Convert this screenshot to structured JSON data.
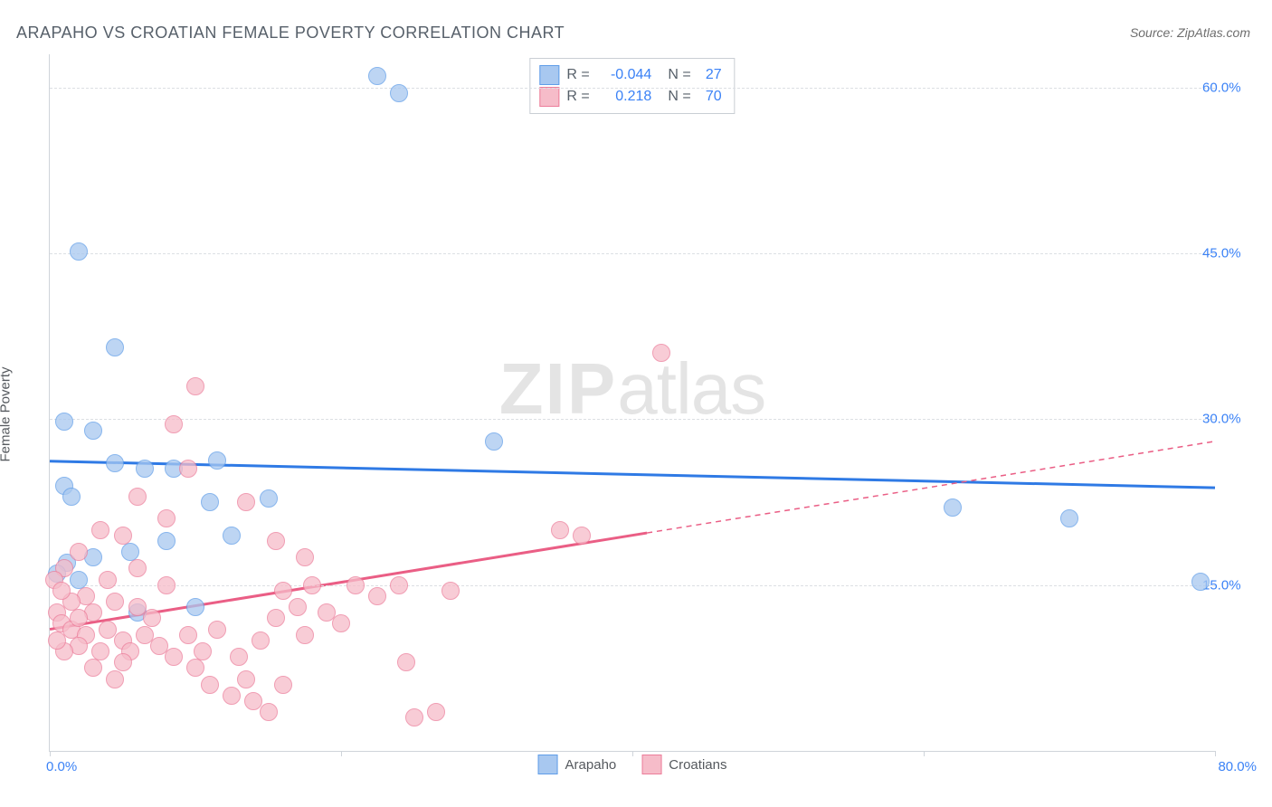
{
  "title": "ARAPAHO VS CROATIAN FEMALE POVERTY CORRELATION CHART",
  "source": "Source: ZipAtlas.com",
  "watermark_bold": "ZIP",
  "watermark_rest": "atlas",
  "chart": {
    "type": "scatter",
    "ylabel": "Female Poverty",
    "xlim": [
      0,
      80
    ],
    "ylim": [
      0,
      63
    ],
    "yticks": [
      15,
      30,
      45,
      60
    ],
    "ytick_labels": [
      "15.0%",
      "30.0%",
      "45.0%",
      "60.0%"
    ],
    "xtick_positions": [
      0,
      20,
      40,
      60,
      80
    ],
    "xlabel_min": "0.0%",
    "xlabel_max": "80.0%",
    "grid_color": "#dcdfe3",
    "axis_color": "#cfd4da",
    "tick_label_color": "#3b82f6",
    "background_color": "#ffffff",
    "series": [
      {
        "name": "Arapaho",
        "marker_fill": "#a8c8f0",
        "marker_stroke": "#5f9de8",
        "marker_opacity": 0.75,
        "marker_radius": 9,
        "line_color": "#2f7ae5",
        "line_width": 3,
        "reg_line": {
          "x1": 0,
          "y1": 26.2,
          "x2": 80,
          "y2": 23.8,
          "solid_until_x": 80
        },
        "R_label": "R =",
        "R_value": "-0.044",
        "N_label": "N =",
        "N_value": "27",
        "points": [
          [
            2.0,
            45.2
          ],
          [
            4.5,
            36.5
          ],
          [
            1.0,
            29.8
          ],
          [
            3.0,
            29.0
          ],
          [
            1.0,
            24.0
          ],
          [
            1.5,
            23.0
          ],
          [
            4.5,
            26.0
          ],
          [
            6.5,
            25.5
          ],
          [
            8.5,
            25.5
          ],
          [
            11.5,
            26.3
          ],
          [
            15.0,
            22.8
          ],
          [
            11.0,
            22.5
          ],
          [
            8.0,
            19.0
          ],
          [
            5.5,
            18.0
          ],
          [
            3.0,
            17.5
          ],
          [
            1.2,
            17.0
          ],
          [
            0.5,
            16.0
          ],
          [
            12.5,
            19.5
          ],
          [
            10.0,
            13.0
          ],
          [
            6.0,
            12.5
          ],
          [
            22.5,
            61.0
          ],
          [
            24.0,
            59.5
          ],
          [
            30.5,
            28.0
          ],
          [
            62.0,
            22.0
          ],
          [
            70.0,
            21.0
          ],
          [
            79.0,
            15.3
          ],
          [
            2.0,
            15.5
          ]
        ]
      },
      {
        "name": "Croatians",
        "marker_fill": "#f6bcc9",
        "marker_stroke": "#ec7d9a",
        "marker_opacity": 0.75,
        "marker_radius": 9,
        "line_color": "#ea5e85",
        "line_width": 3,
        "reg_line": {
          "x1": 0,
          "y1": 11.0,
          "x2": 80,
          "y2": 28.0,
          "solid_until_x": 41
        },
        "R_label": "R =",
        "R_value": "0.218",
        "N_label": "N =",
        "N_value": "70",
        "points": [
          [
            42.0,
            36.0
          ],
          [
            10.0,
            33.0
          ],
          [
            8.5,
            29.5
          ],
          [
            6.0,
            23.0
          ],
          [
            9.5,
            25.5
          ],
          [
            13.5,
            22.5
          ],
          [
            15.5,
            19.0
          ],
          [
            17.5,
            17.5
          ],
          [
            8.0,
            21.0
          ],
          [
            3.5,
            20.0
          ],
          [
            5.0,
            19.5
          ],
          [
            2.0,
            18.0
          ],
          [
            1.0,
            16.5
          ],
          [
            0.5,
            12.5
          ],
          [
            0.8,
            11.5
          ],
          [
            1.5,
            11.0
          ],
          [
            2.5,
            10.5
          ],
          [
            3.0,
            12.5
          ],
          [
            4.0,
            11.0
          ],
          [
            5.0,
            10.0
          ],
          [
            3.5,
            9.0
          ],
          [
            2.0,
            9.5
          ],
          [
            1.0,
            9.0
          ],
          [
            0.5,
            10.0
          ],
          [
            0.3,
            15.5
          ],
          [
            4.5,
            13.5
          ],
          [
            6.0,
            13.0
          ],
          [
            7.0,
            12.0
          ],
          [
            6.5,
            10.5
          ],
          [
            5.5,
            9.0
          ],
          [
            5.0,
            8.0
          ],
          [
            7.5,
            9.5
          ],
          [
            8.5,
            8.5
          ],
          [
            9.5,
            10.5
          ],
          [
            10.5,
            9.0
          ],
          [
            11.5,
            11.0
          ],
          [
            10.0,
            7.5
          ],
          [
            11.0,
            6.0
          ],
          [
            12.5,
            5.0
          ],
          [
            13.5,
            6.5
          ],
          [
            14.0,
            4.5
          ],
          [
            15.0,
            3.5
          ],
          [
            16.0,
            6.0
          ],
          [
            13.0,
            8.5
          ],
          [
            14.5,
            10.0
          ],
          [
            15.5,
            12.0
          ],
          [
            17.0,
            13.0
          ],
          [
            17.5,
            10.5
          ],
          [
            16.0,
            14.5
          ],
          [
            18.0,
            15.0
          ],
          [
            19.0,
            12.5
          ],
          [
            20.0,
            11.5
          ],
          [
            21.0,
            15.0
          ],
          [
            22.5,
            14.0
          ],
          [
            24.0,
            15.0
          ],
          [
            24.5,
            8.0
          ],
          [
            25.0,
            3.0
          ],
          [
            26.5,
            3.5
          ],
          [
            27.5,
            14.5
          ],
          [
            35.0,
            20.0
          ],
          [
            36.5,
            19.5
          ],
          [
            2.5,
            14.0
          ],
          [
            4.0,
            15.5
          ],
          [
            6.0,
            16.5
          ],
          [
            8.0,
            15.0
          ],
          [
            3.0,
            7.5
          ],
          [
            4.5,
            6.5
          ],
          [
            1.5,
            13.5
          ],
          [
            0.8,
            14.5
          ],
          [
            2.0,
            12.0
          ]
        ]
      }
    ]
  },
  "legend_bottom": [
    {
      "label": "Arapaho",
      "fill": "#a8c8f0",
      "stroke": "#5f9de8"
    },
    {
      "label": "Croatians",
      "fill": "#f6bcc9",
      "stroke": "#ec7d9a"
    }
  ]
}
